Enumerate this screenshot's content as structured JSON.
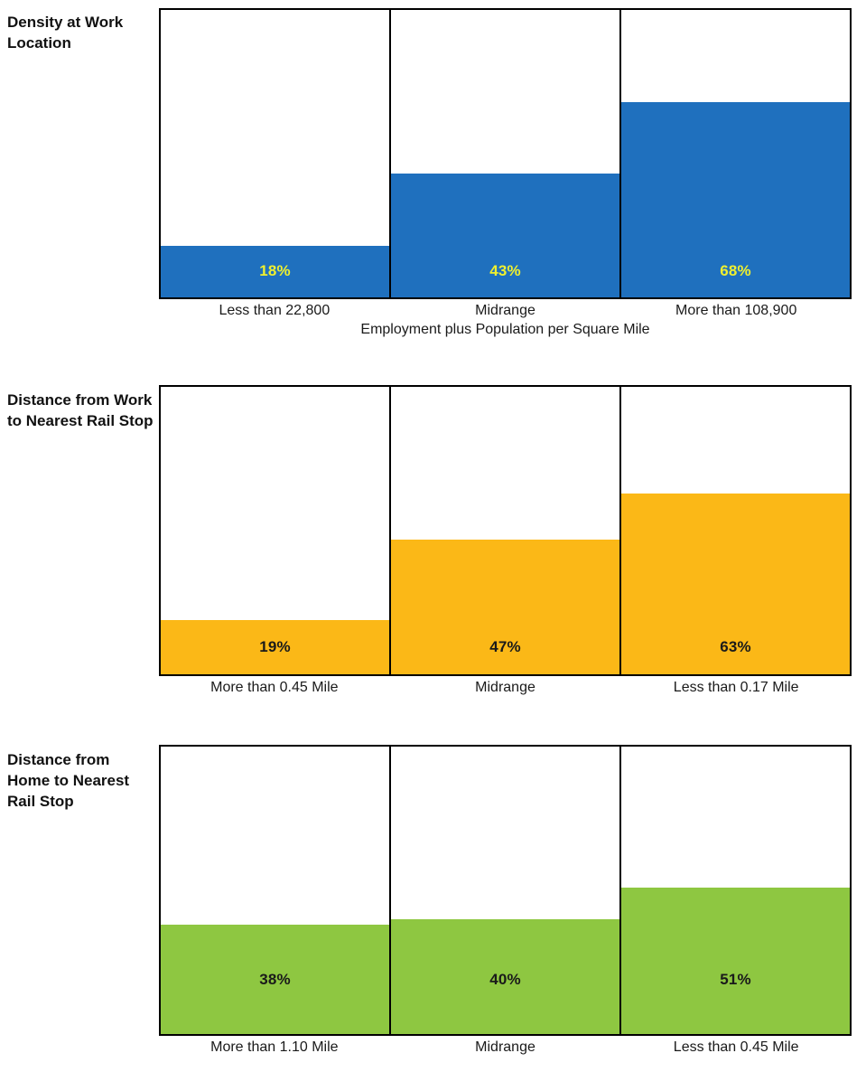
{
  "page": {
    "background": "#ffffff",
    "text_color": "#1a1a1a",
    "border_color": "#000000"
  },
  "chart_data": [
    {
      "type": "bar",
      "title": "Density at Work Location",
      "categories": [
        "Less than 22,800",
        "Midrange",
        "More than 108,900"
      ],
      "values": [
        18,
        43,
        68
      ],
      "value_labels": [
        "18%",
        "43%",
        "68%"
      ],
      "xlabel": "Employment plus Population per Square Mile",
      "ylabel": "",
      "ylim": [
        0,
        100
      ],
      "grid": false,
      "legend": false,
      "bar_color": "#1F70BE",
      "value_label_color": "#EFF02F"
    },
    {
      "type": "bar",
      "title": "Distance from Work to Nearest Rail Stop",
      "categories": [
        "More than 0.45 Mile",
        "Midrange",
        "Less than 0.17 Mile"
      ],
      "values": [
        19,
        47,
        63
      ],
      "value_labels": [
        "19%",
        "47%",
        "63%"
      ],
      "xlabel": "",
      "ylabel": "",
      "ylim": [
        0,
        100
      ],
      "grid": false,
      "legend": false,
      "bar_color": "#FBB817",
      "value_label_color": "#1A1A1A"
    },
    {
      "type": "bar",
      "title": "Distance from Home to Nearest Rail Stop",
      "categories": [
        "More than 1.10 Mile",
        "Midrange",
        "Less than 0.45 Mile"
      ],
      "values": [
        38,
        40,
        51
      ],
      "value_labels": [
        "38%",
        "40%",
        "51%"
      ],
      "xlabel": "",
      "ylabel": "",
      "ylim": [
        0,
        100
      ],
      "grid": false,
      "legend": false,
      "bar_color": "#8EC741",
      "value_label_color": "#1A1A1A"
    }
  ]
}
